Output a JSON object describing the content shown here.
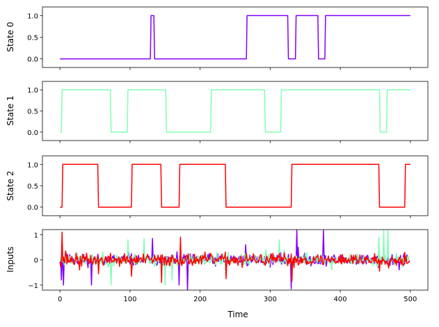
{
  "chart_data": [
    {
      "type": "line",
      "ylabel": "State 0",
      "xlim": [
        -25,
        525
      ],
      "ylim": [
        -0.2,
        1.2
      ],
      "yticks": [
        0.0,
        0.5,
        1.0
      ],
      "ytick_labels": [
        "0.0",
        "0.5",
        "1.0"
      ],
      "series": [
        {
          "name": "state0",
          "color": "#8000ff",
          "x": [
            0,
            129,
            130,
            134,
            135,
            266,
            267,
            325,
            326,
            336,
            337,
            368,
            369,
            378,
            379,
            500
          ],
          "y": [
            0,
            0,
            1,
            1,
            0,
            0,
            1,
            1,
            0,
            0,
            1,
            1,
            0,
            0,
            1,
            1
          ]
        }
      ]
    },
    {
      "type": "line",
      "ylabel": "State 1",
      "xlim": [
        -25,
        525
      ],
      "ylim": [
        -0.2,
        1.2
      ],
      "yticks": [
        0.0,
        0.5,
        1.0
      ],
      "ytick_labels": [
        "0.0",
        "0.5",
        "1.0"
      ],
      "series": [
        {
          "name": "state1",
          "color": "#80ffb4",
          "x": [
            0,
            2,
            3,
            72,
            73,
            96,
            97,
            151,
            152,
            215,
            216,
            292,
            293,
            315,
            316,
            456,
            457,
            466,
            467,
            500
          ],
          "y": [
            0,
            0,
            1,
            1,
            0,
            0,
            1,
            1,
            0,
            0,
            1,
            1,
            0,
            0,
            1,
            1,
            0,
            0,
            1,
            1
          ]
        }
      ]
    },
    {
      "type": "line",
      "ylabel": "State 2",
      "xlim": [
        -25,
        525
      ],
      "ylim": [
        -0.2,
        1.2
      ],
      "yticks": [
        0.0,
        0.5,
        1.0
      ],
      "ytick_labels": [
        "0.0",
        "0.5",
        "1.0"
      ],
      "series": [
        {
          "name": "state2",
          "color": "#ff0000",
          "x": [
            0,
            3,
            4,
            54,
            55,
            102,
            103,
            144,
            145,
            170,
            171,
            236,
            237,
            330,
            331,
            455,
            456,
            492,
            493,
            500
          ],
          "y": [
            0,
            0,
            1,
            1,
            0,
            0,
            1,
            1,
            0,
            0,
            1,
            1,
            0,
            0,
            1,
            1,
            0,
            0,
            1,
            1
          ]
        }
      ]
    },
    {
      "type": "line",
      "ylabel": "Inputs",
      "xlabel": "Time",
      "xlim": [
        -25,
        525
      ],
      "ylim": [
        -1.2,
        1.2
      ],
      "yticks": [
        -1,
        0,
        1
      ],
      "ytick_labels": [
        "−1",
        "0",
        "1"
      ],
      "xticks": [
        0,
        100,
        200,
        300,
        400,
        500
      ],
      "xtick_labels": [
        "0",
        "100",
        "200",
        "300",
        "400",
        "500"
      ],
      "n_points": 500,
      "series": [
        {
          "name": "input0",
          "color": "#8000ff",
          "seed": 11,
          "amplitude": 0.14,
          "spikes": [
            [
              2,
              -0.8
            ],
            [
              5,
              -1.0
            ],
            [
              45,
              -1.0
            ],
            [
              98,
              0.3
            ],
            [
              132,
              0.85
            ],
            [
              170,
              -1.0
            ],
            [
              182,
              -1.25
            ],
            [
              265,
              0.6
            ],
            [
              330,
              -1.15
            ],
            [
              338,
              1.2
            ],
            [
              340,
              0.5
            ],
            [
              376,
              1.2
            ],
            [
              454,
              -0.3
            ],
            [
              484,
              -0.4
            ]
          ]
        },
        {
          "name": "input1",
          "color": "#80ffb4",
          "seed": 23,
          "amplitude": 0.14,
          "spikes": [
            [
              73,
              -1.0
            ],
            [
              97,
              0.8
            ],
            [
              120,
              0.85
            ],
            [
              150,
              -1.0
            ],
            [
              160,
              -0.8
            ],
            [
              240,
              0.3
            ],
            [
              294,
              0.4
            ],
            [
              313,
              0.8
            ],
            [
              320,
              0.4
            ],
            [
              352,
              0.3
            ],
            [
              388,
              -0.4
            ],
            [
              455,
              0.9
            ],
            [
              462,
              1.2
            ],
            [
              468,
              1.2
            ]
          ]
        },
        {
          "name": "input2",
          "color": "#ff0000",
          "seed": 37,
          "amplitude": 0.15,
          "spikes": [
            [
              3,
              1.1
            ],
            [
              8,
              0.35
            ],
            [
              28,
              -0.4
            ],
            [
              55,
              -0.55
            ],
            [
              102,
              -0.65
            ],
            [
              145,
              -0.9
            ],
            [
              172,
              0.9
            ],
            [
              237,
              -0.75
            ],
            [
              260,
              -0.3
            ],
            [
              331,
              -0.85
            ],
            [
              400,
              0.2
            ],
            [
              456,
              -0.45
            ],
            [
              492,
              0.3
            ]
          ]
        }
      ]
    }
  ]
}
